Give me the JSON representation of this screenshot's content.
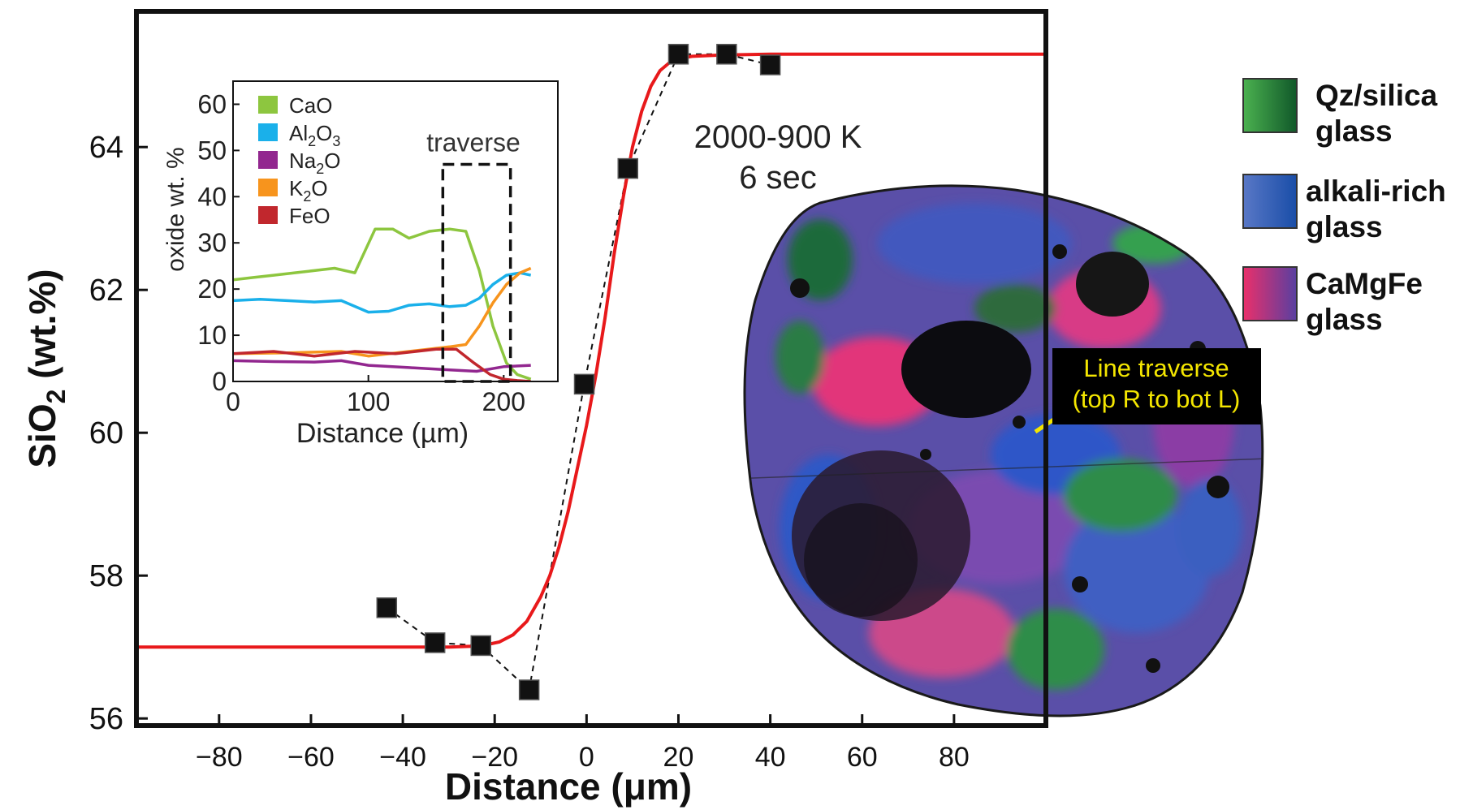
{
  "chart_data": [
    {
      "type": "line",
      "title": "",
      "xlabel": "Distance (μm)",
      "ylabel_main": "SiO",
      "ylabel_sub": "2",
      "ylabel_tail": " (wt.%)",
      "xlim": [
        -98,
        100
      ],
      "ylim": [
        55.9,
        65.9
      ],
      "xticks": [
        -80,
        -60,
        -40,
        -20,
        0,
        20,
        40,
        60,
        80
      ],
      "yticks": [
        56,
        58,
        60,
        62,
        64
      ],
      "annotation": [
        "2000-900 K",
        "6 sec"
      ],
      "series": [
        {
          "kind": "fit",
          "color": "#e8191b",
          "x": [
            -98,
            -60,
            -40,
            -30,
            -25,
            -22,
            -19,
            -16,
            -13,
            -10,
            -8,
            -6,
            -4,
            -2,
            0,
            2,
            4,
            6,
            8,
            10,
            12,
            14,
            16,
            18,
            20,
            23,
            26,
            30,
            40,
            60,
            100
          ],
          "y": [
            57.0,
            57.0,
            57.0,
            57.0,
            57.01,
            57.03,
            57.07,
            57.17,
            57.36,
            57.7,
            58.0,
            58.4,
            58.9,
            59.5,
            60.1,
            60.8,
            61.6,
            62.5,
            63.3,
            64.0,
            64.5,
            64.85,
            65.07,
            65.18,
            65.24,
            65.27,
            65.28,
            65.29,
            65.3,
            65.3,
            65.3
          ]
        },
        {
          "kind": "data",
          "color": "#111111",
          "x": [
            -43.5,
            -33,
            -23,
            -12.5,
            -0.5,
            9,
            20,
            30.5,
            40
          ],
          "y": [
            57.55,
            57.06,
            57.02,
            56.4,
            60.68,
            63.7,
            65.3,
            65.3,
            65.15
          ]
        }
      ]
    },
    {
      "type": "line",
      "xlabel": "Distance (µm)",
      "ylabel": "oxide wt. %",
      "xlim": [
        0,
        240
      ],
      "ylim": [
        0,
        65
      ],
      "xticks": [
        0,
        100,
        200
      ],
      "yticks": [
        0,
        10,
        20,
        30,
        40,
        50,
        60
      ],
      "box_label": "traverse",
      "box_range": [
        155,
        205
      ],
      "box_top": 47,
      "legend_position": "top-left",
      "series": [
        {
          "name": "CaO",
          "color": "#8dc63f",
          "x": [
            0,
            15,
            30,
            45,
            60,
            75,
            90,
            105,
            118,
            130,
            145,
            160,
            172,
            182,
            192,
            202,
            210,
            220
          ],
          "y": [
            22,
            22.5,
            23,
            23.5,
            24,
            24.5,
            23.5,
            33,
            33,
            31,
            32.5,
            33,
            32.5,
            24,
            12,
            4,
            1.5,
            0.5
          ]
        },
        {
          "name": "Al2O3",
          "label_main": "Al",
          "label_sub": "2",
          "label_mid": "O",
          "label_sub2": "3",
          "color": "#1ab0ea",
          "x": [
            0,
            20,
            40,
            60,
            80,
            100,
            115,
            130,
            145,
            160,
            172,
            182,
            192,
            202,
            212,
            220
          ],
          "y": [
            17.5,
            17.8,
            17.5,
            17.2,
            17.5,
            15,
            15.2,
            16.5,
            16.8,
            16.2,
            16.5,
            18,
            21,
            23,
            23.5,
            23
          ]
        },
        {
          "name": "Na2O",
          "label_main": "Na",
          "label_sub": "2",
          "label_mid": "O",
          "label_sub2": "",
          "color": "#92278f",
          "x": [
            0,
            30,
            60,
            80,
            100,
            130,
            160,
            180,
            200,
            220
          ],
          "y": [
            4.5,
            4.3,
            4.2,
            4.5,
            3.5,
            3,
            2.5,
            2.2,
            3.2,
            3.5
          ]
        },
        {
          "name": "K2O",
          "label_main": "K",
          "label_sub": "2",
          "label_mid": "O",
          "label_sub2": "",
          "color": "#f7941d",
          "x": [
            0,
            40,
            80,
            100,
            130,
            160,
            172,
            182,
            192,
            202,
            212,
            220
          ],
          "y": [
            6,
            6.2,
            6.5,
            5.5,
            6.5,
            7.5,
            8,
            12,
            17,
            21,
            23.5,
            24.5
          ]
        },
        {
          "name": "FeO",
          "color": "#c1272d",
          "x": [
            0,
            30,
            60,
            90,
            120,
            150,
            165,
            178,
            190,
            200,
            210,
            220
          ],
          "y": [
            6,
            6.5,
            5.5,
            6.5,
            6,
            7,
            7,
            4,
            1.5,
            0.5,
            0.2,
            0
          ]
        }
      ]
    }
  ],
  "image_label": [
    "Line traverse",
    "(top R to bot L)"
  ],
  "legend": [
    {
      "label": [
        "Qz/silica",
        "glass"
      ],
      "colors": [
        "#4ab04f",
        "#11592a"
      ]
    },
    {
      "label": [
        "alkali-rich",
        "glass"
      ],
      "colors": [
        "#5877c6",
        "#1a4ea8"
      ]
    },
    {
      "label": [
        "CaMgFe",
        "glass"
      ],
      "colors": [
        "#e8306b",
        "#5a3fa0"
      ]
    }
  ]
}
